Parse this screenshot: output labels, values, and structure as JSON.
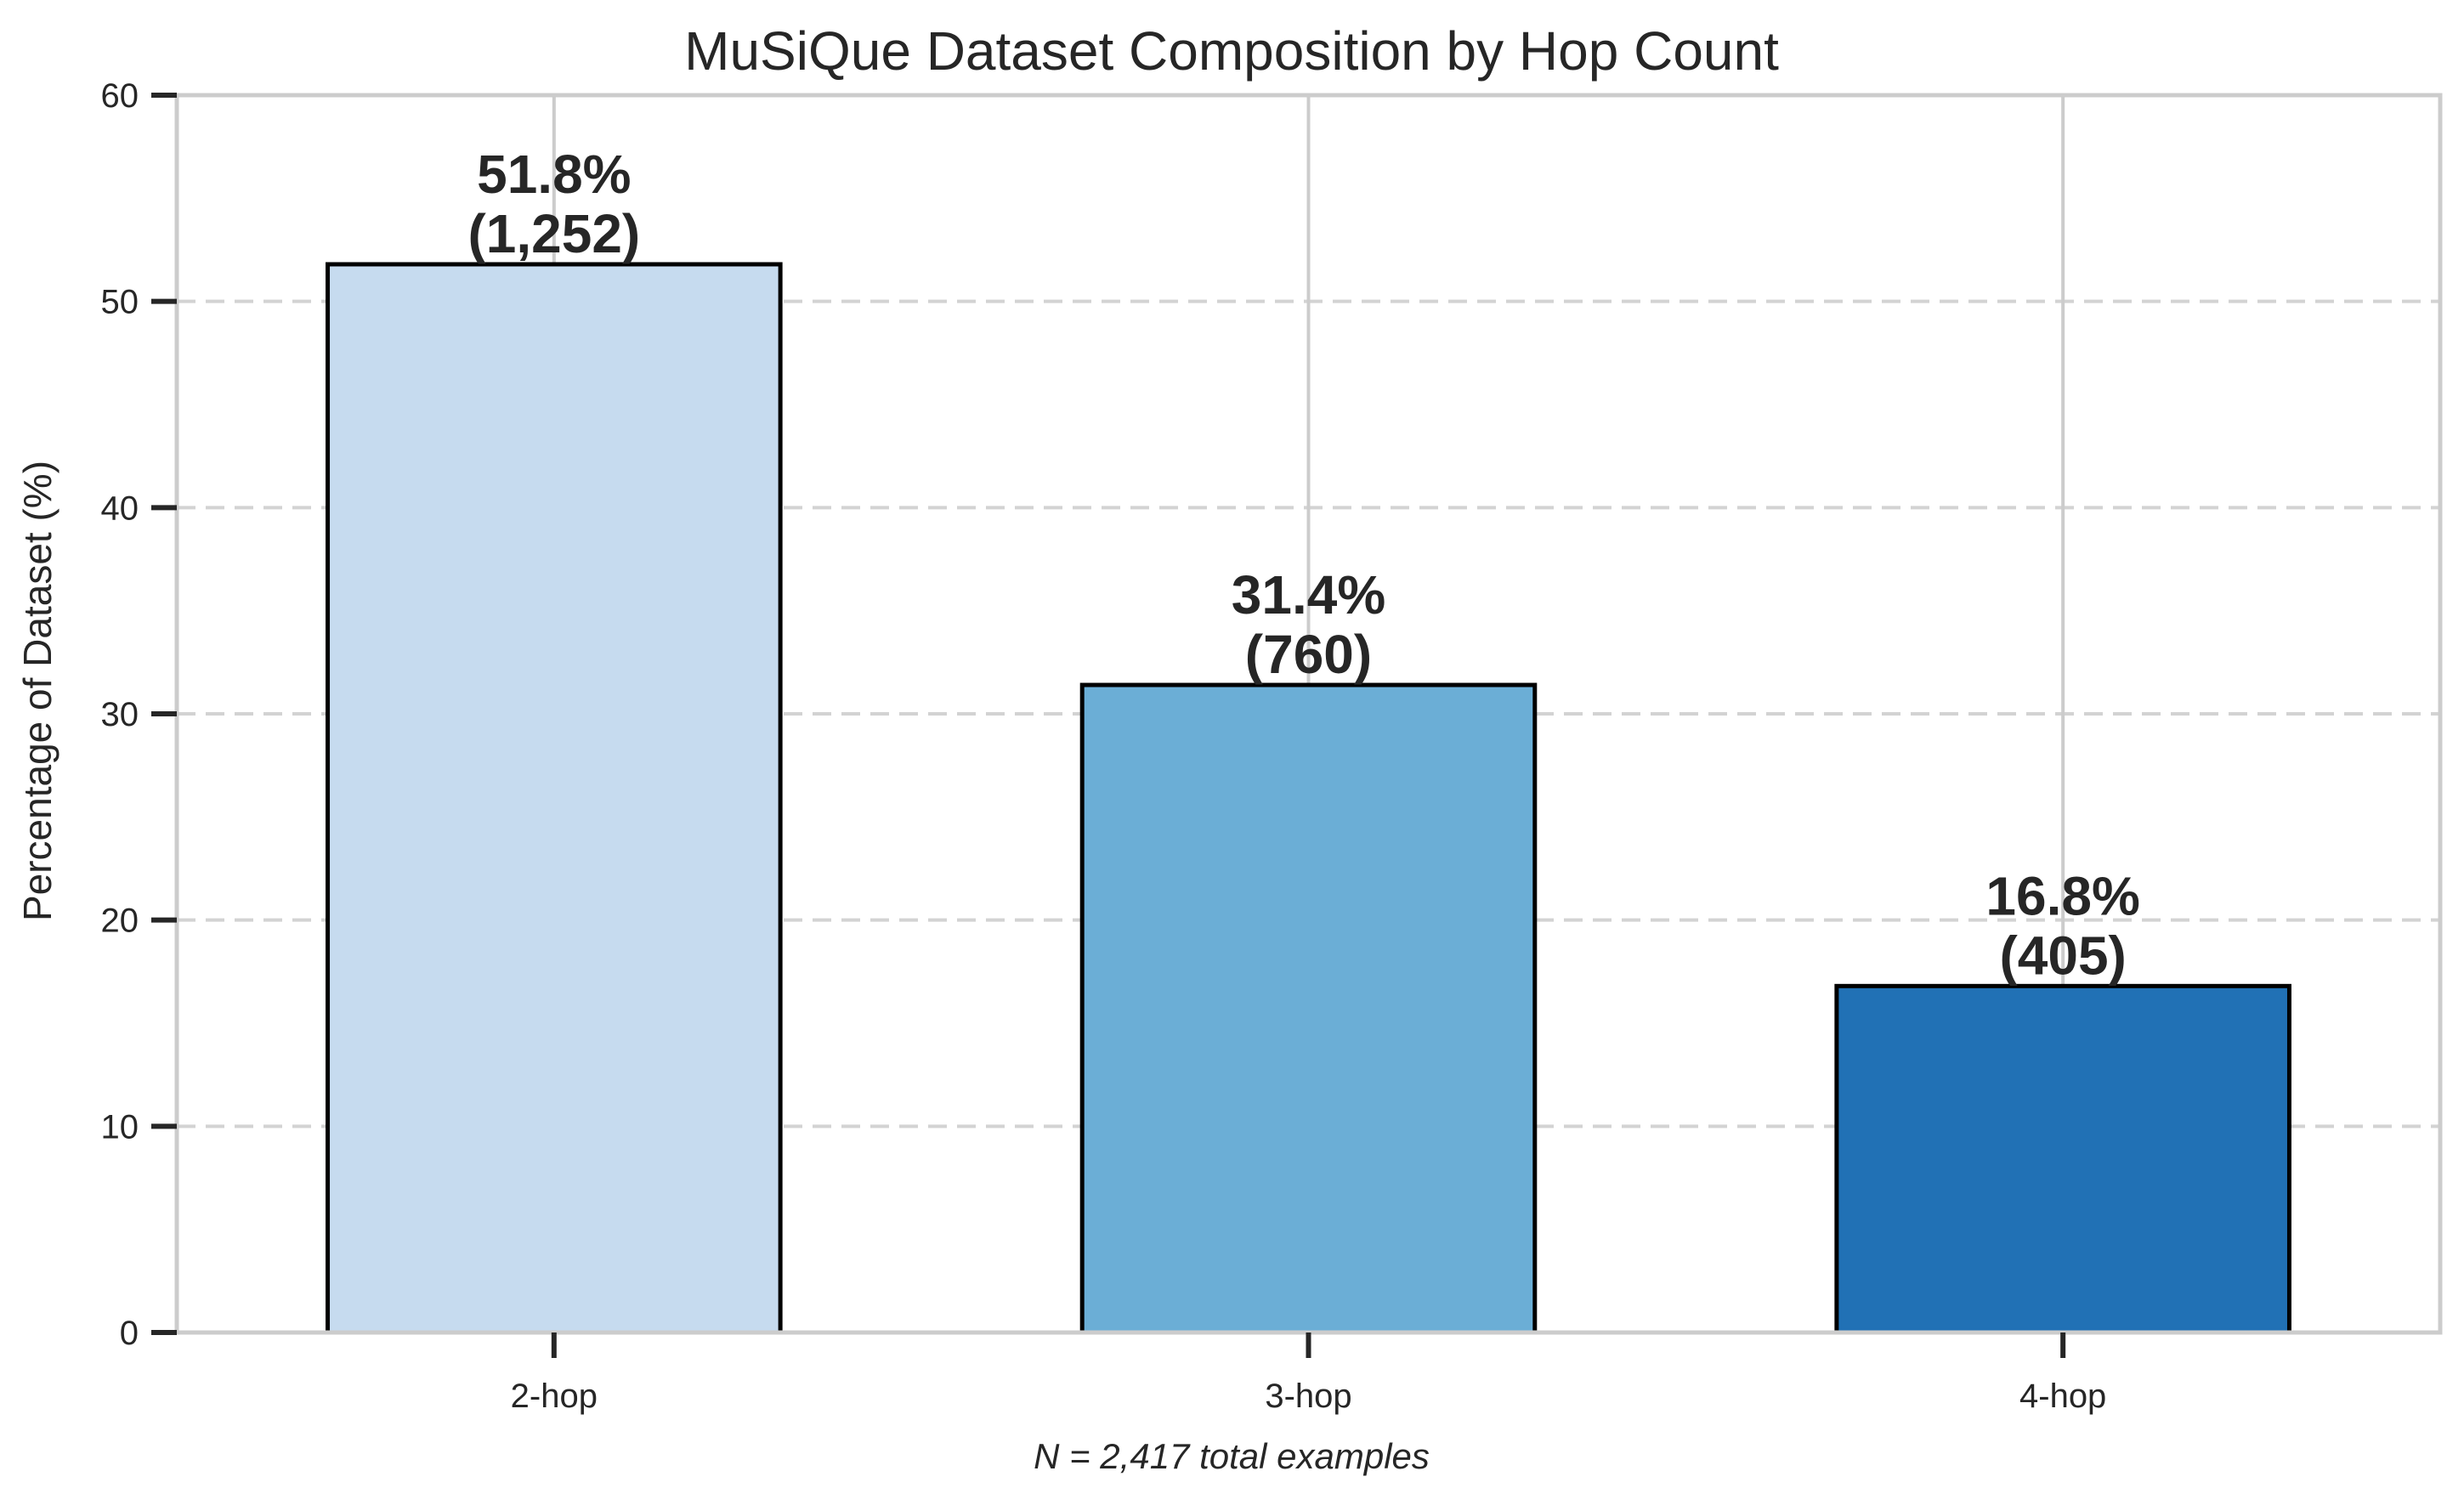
{
  "chart_data": {
    "type": "bar",
    "title": "MuSiQue Dataset Composition by Hop Count",
    "xlabel": "",
    "ylabel": "Percentage of Dataset (%)",
    "ylim": [
      0,
      60
    ],
    "yticks": [
      0,
      10,
      20,
      30,
      40,
      50,
      60
    ],
    "categories": [
      "2-hop",
      "3-hop",
      "4-hop"
    ],
    "values": [
      51.8,
      31.4,
      16.8
    ],
    "counts": [
      1252,
      760,
      405
    ],
    "value_labels": [
      "51.8%",
      "31.4%",
      "16.8%"
    ],
    "count_labels": [
      "(1,252)",
      "(760)",
      "(405)"
    ],
    "bar_colors": [
      "#c6dbef",
      "#6baed6",
      "#2171b5"
    ],
    "grid": true,
    "annotation": "N = 2,417 total examples"
  }
}
